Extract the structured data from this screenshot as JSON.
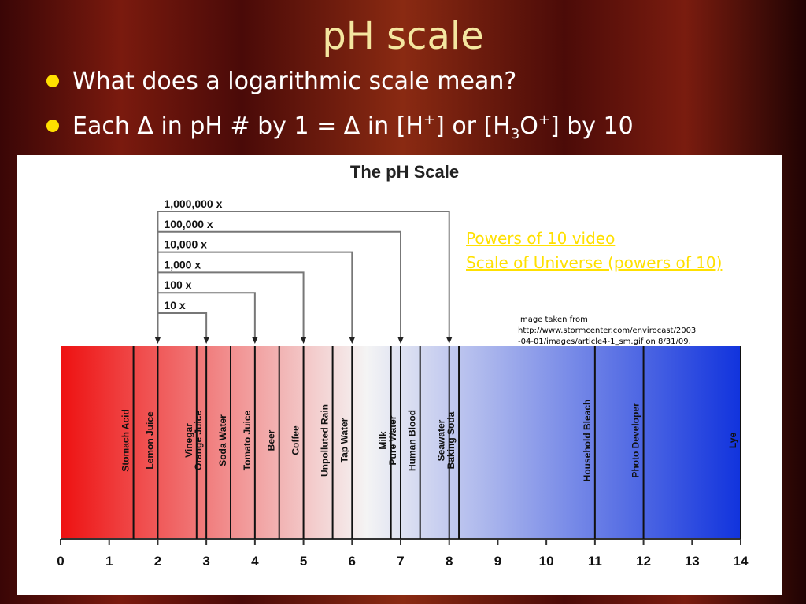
{
  "slide": {
    "title": "pH scale",
    "bullets": [
      [
        "What does a logarithmic scale mean?"
      ],
      [
        "Each Δ in pH # by 1 = Δ in [H",
        "+",
        "] or [H",
        "3",
        "O",
        "+",
        "] by 10"
      ]
    ],
    "links": [
      "Powers of 10 video",
      "Scale of Universe (powers of 10)"
    ],
    "credit": [
      "Image taken from",
      "http://www.stormcenter.com/envirocast/2003",
      "-04-01/images/article4-1_sm.gif on 8/31/09."
    ]
  },
  "chart_data": {
    "type": "scale",
    "title": "The pH Scale",
    "categories": [
      "Stomach Acid",
      "Lemon Juice",
      "Vinegar",
      "Orange Juice",
      "Soda Water",
      "Tomato Juice",
      "Beer",
      "Coffee",
      "Unpolluted Rain",
      "Tap Water",
      "Milk",
      "Pure Water",
      "Human Blood",
      "Seawater",
      "Baking Soda",
      "Household Bleach",
      "Photo Developer",
      "Lye"
    ],
    "values": [
      1.5,
      2,
      2.8,
      3,
      3.5,
      4,
      4.5,
      5,
      5.6,
      6,
      6.8,
      7,
      7.4,
      8,
      8.2,
      11,
      12,
      14
    ],
    "xlim": [
      0,
      14
    ],
    "xticks": [
      0,
      1,
      2,
      3,
      4,
      5,
      6,
      7,
      8,
      9,
      10,
      11,
      12,
      13,
      14
    ],
    "brackets": [
      {
        "label": "10 x",
        "from": 2,
        "to": 3
      },
      {
        "label": "100 x",
        "from": 2,
        "to": 4
      },
      {
        "label": "1,000 x",
        "from": 2,
        "to": 5
      },
      {
        "label": "10,000 x",
        "from": 2,
        "to": 6
      },
      {
        "label": "100,000 x",
        "from": 2,
        "to": 7
      },
      {
        "label": "1,000,000 x",
        "from": 2,
        "to": 8
      }
    ],
    "colors": [
      "#ee1111",
      "#f4f4f4",
      "#1133dd"
    ]
  }
}
